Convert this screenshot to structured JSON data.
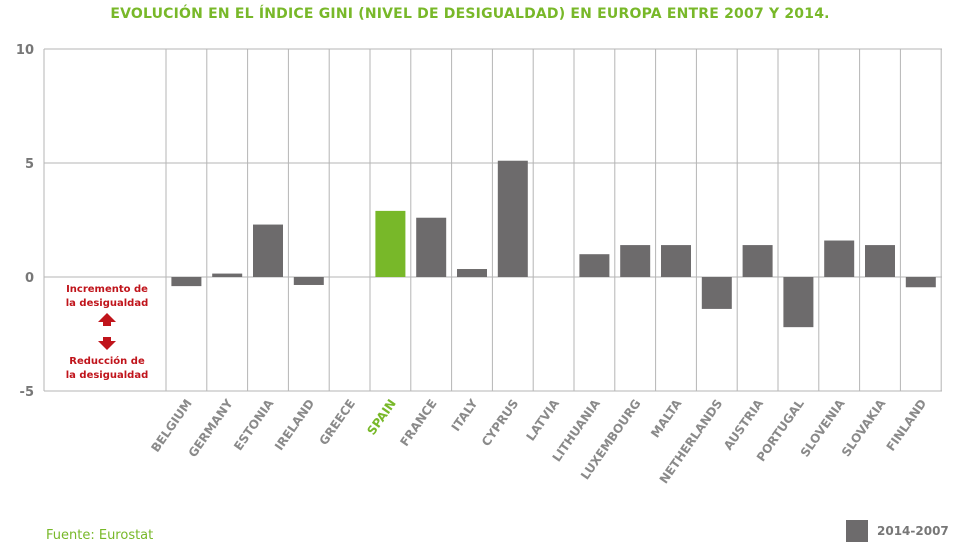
{
  "chart_data": {
    "type": "bar",
    "title": "EVOLUCIÓN EN EL ÍNDICE GINI (NIVEL DE DESIGUALDAD) EN EUROPA ENTRE 2007 Y 2014.",
    "xlabel": "",
    "ylabel": "",
    "ylim": [
      -5,
      10
    ],
    "yticks": [
      10,
      5,
      0,
      -5
    ],
    "categories": [
      "BELGIUM",
      "GERMANY",
      "ESTONIA",
      "IRELAND",
      "GREECE",
      "SPAIN",
      "FRANCE",
      "ITALY",
      "CYPRUS",
      "LATVIA",
      "LITHUANIA",
      "LUXEMBOURG",
      "MALTA",
      "NETHERLANDS",
      "AUSTRIA",
      "PORTUGAL",
      "SLOVENIA",
      "SLOVAKIA",
      "FINLAND"
    ],
    "series": [
      {
        "name": "2014-2007",
        "values": [
          -0.4,
          0.15,
          2.3,
          -0.35,
          0,
          2.9,
          2.6,
          0.35,
          5.1,
          0,
          1.0,
          1.4,
          1.4,
          -1.4,
          1.4,
          -2.2,
          1.6,
          1.4,
          -0.45
        ]
      }
    ],
    "highlight": "SPAIN",
    "annotations": {
      "increase": [
        "Incremento de",
        "la desigualdad"
      ],
      "decrease": [
        "Reducción de",
        "la desigualdad"
      ]
    },
    "legend": {
      "label": "2014-2007",
      "position": "bottom-right"
    },
    "grid": true
  },
  "colors": {
    "bar": "#6d6b6c",
    "highlight": "#78b829",
    "grid": "#b5b5b5",
    "annotation": "#c0141b"
  },
  "source": "Fuente: Eurostat"
}
